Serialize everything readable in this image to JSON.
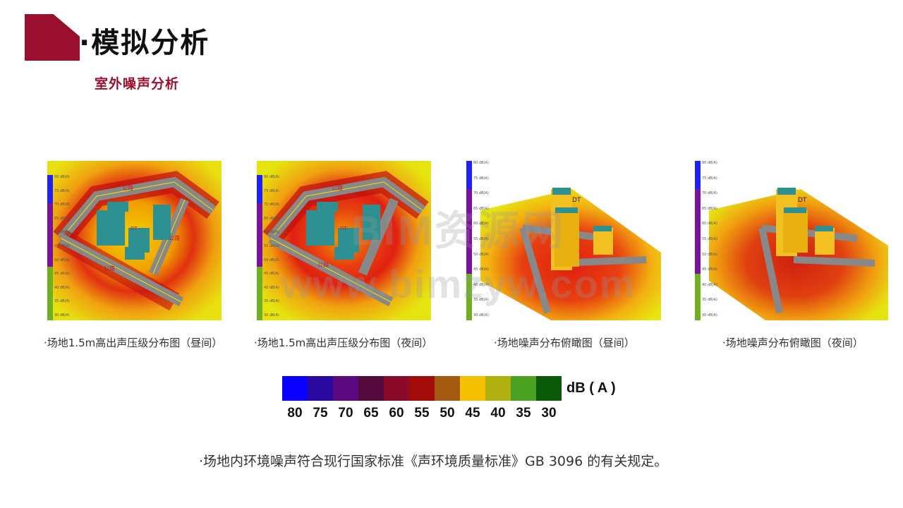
{
  "header": {
    "title": "·模拟分析",
    "subtitle": "室外噪声分析"
  },
  "panels": [
    {
      "caption": "·场地1.5m高出声压级分布图（昼间）",
      "road_label_top": "公路",
      "road_label_bottom": "公路",
      "road_label_right": "公路",
      "building_label": "DT"
    },
    {
      "caption": "·场地1.5m高出声压级分布图（夜间）",
      "road_label_top": "公路",
      "road_label_bottom": "公路",
      "building_label": "DT"
    },
    {
      "caption": "·场地噪声分布俯瞰图（昼间）",
      "building_label": "DT"
    },
    {
      "caption": "·场地噪声分布俯瞰图（夜间）",
      "building_label": "DT"
    }
  ],
  "scale_labels": [
    "80 dB(A)",
    "75 dB(A)",
    "70 dB(A)",
    "65 dB(A)",
    "60 dB(A)",
    "55 dB(A)",
    "50 dB(A)",
    "45 dB(A)",
    "40 dB(A)",
    "35 dB(A)",
    "30 dB(A)"
  ],
  "legend": {
    "values": [
      "80",
      "75",
      "70",
      "65",
      "60",
      "55",
      "50",
      "45",
      "40",
      "35",
      "30"
    ],
    "colors": [
      "#0a00ff",
      "#2a0a9e",
      "#5a0a7e",
      "#550a3e",
      "#8a0a2a",
      "#a30a0a",
      "#a35a10",
      "#f5c000",
      "#b0b010",
      "#4aa020",
      "#0a5a0a"
    ],
    "unit": "dB ( A )"
  },
  "note": "·场地内环境噪声符合现行国家标准《声环境质量标准》GB 3096 的有关规定。",
  "watermark": {
    "line1": "BIM资源网",
    "line2": "www.bimzyw.com"
  }
}
